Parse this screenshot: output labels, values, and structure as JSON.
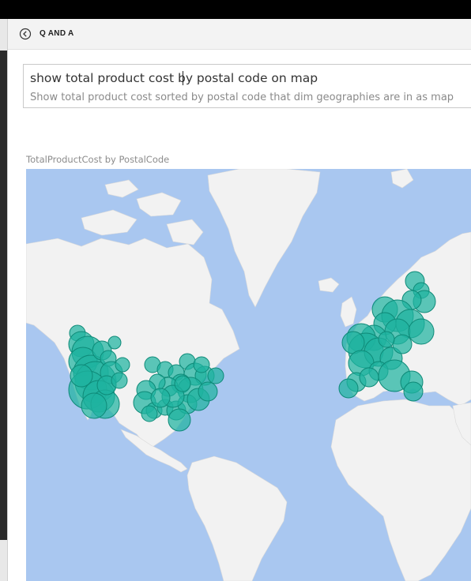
{
  "header": {
    "title": "Q AND A",
    "back_icon": "back-arrow-icon"
  },
  "qa": {
    "query": "show total product cost by postal code on map",
    "suggestion": "Show total product cost sorted by postal code that dim geographies are in as map"
  },
  "visual": {
    "title": "TotalProductCost by PostalCode",
    "type": "map",
    "bubble_color": "#1fb3a0",
    "bubble_stroke": "#0e8a78",
    "water_color": "#a9c7f0",
    "land_color": "#f2f2f2"
  }
}
